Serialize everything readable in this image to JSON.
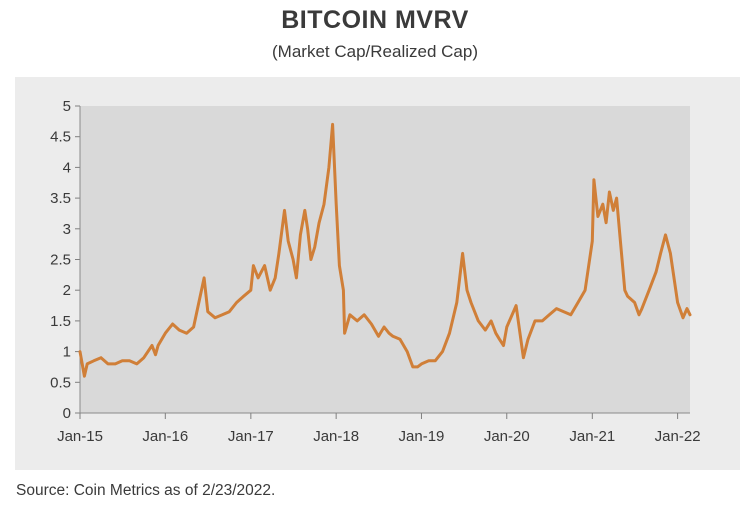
{
  "header": {
    "title": "BITCOIN MVRV",
    "subtitle": "(Market Cap/Realized Cap)"
  },
  "footer": {
    "source": "Source: Coin Metrics as of 2/23/2022."
  },
  "colors": {
    "line": "#d07f38",
    "plot_bg": "#d9d9d9",
    "panel_bg": "#ececec",
    "text": "#3a3a3a"
  },
  "chart_data": {
    "type": "line",
    "title": "BITCOIN MVRV",
    "subtitle": "(Market Cap/Realized Cap)",
    "xlabel": "",
    "ylabel": "",
    "ylim": [
      0,
      5
    ],
    "yticks": [
      0,
      0.5,
      1,
      1.5,
      2,
      2.5,
      3,
      3.5,
      4,
      4.5,
      5
    ],
    "ytick_labels": [
      "0",
      "0.5",
      "1",
      "1.5",
      "2",
      "2.5",
      "3",
      "3.5",
      "4",
      "4.5",
      "5"
    ],
    "xlim": [
      "2015-01-01",
      "2022-02-23"
    ],
    "xticks": [
      "2015-01-01",
      "2016-01-01",
      "2017-01-01",
      "2018-01-01",
      "2019-01-01",
      "2020-01-01",
      "2021-01-01",
      "2022-01-01"
    ],
    "xtick_labels": [
      "Jan-15",
      "Jan-16",
      "Jan-17",
      "Jan-18",
      "Jan-19",
      "Jan-20",
      "Jan-21",
      "Jan-22"
    ],
    "grid": false,
    "legend": "none",
    "series": [
      {
        "x": [
          "2015-01-01",
          "2015-01-20",
          "2015-02-01",
          "2015-03-01",
          "2015-04-01",
          "2015-05-01",
          "2015-06-01",
          "2015-07-01",
          "2015-08-01",
          "2015-09-01",
          "2015-10-01",
          "2015-11-05",
          "2015-11-20",
          "2015-12-01",
          "2016-01-01",
          "2016-02-01",
          "2016-03-01",
          "2016-04-01",
          "2016-05-01",
          "2016-06-15",
          "2016-07-01",
          "2016-08-01",
          "2016-09-01",
          "2016-10-01",
          "2016-11-01",
          "2016-12-01",
          "2017-01-01",
          "2017-01-12",
          "2017-02-01",
          "2017-03-01",
          "2017-03-25",
          "2017-04-15",
          "2017-05-01",
          "2017-05-25",
          "2017-06-10",
          "2017-07-01",
          "2017-07-15",
          "2017-08-01",
          "2017-08-20",
          "2017-09-01",
          "2017-09-15",
          "2017-10-01",
          "2017-10-20",
          "2017-11-10",
          "2017-12-01",
          "2017-12-17",
          "2018-01-01",
          "2018-01-15",
          "2018-02-01",
          "2018-02-06",
          "2018-03-01",
          "2018-04-01",
          "2018-05-01",
          "2018-06-01",
          "2018-07-01",
          "2018-07-25",
          "2018-08-15",
          "2018-09-01",
          "2018-10-01",
          "2018-11-01",
          "2018-11-25",
          "2018-12-15",
          "2019-01-01",
          "2019-02-01",
          "2019-03-01",
          "2019-04-01",
          "2019-05-01",
          "2019-06-01",
          "2019-06-26",
          "2019-07-15",
          "2019-08-01",
          "2019-09-01",
          "2019-10-01",
          "2019-10-26",
          "2019-11-15",
          "2019-12-01",
          "2019-12-18",
          "2020-01-01",
          "2020-02-10",
          "2020-03-12",
          "2020-04-01",
          "2020-05-01",
          "2020-06-01",
          "2020-07-01",
          "2020-08-01",
          "2020-09-01",
          "2020-10-01",
          "2020-11-01",
          "2020-12-01",
          "2021-01-01",
          "2021-01-08",
          "2021-01-25",
          "2021-02-15",
          "2021-03-01",
          "2021-03-15",
          "2021-04-01",
          "2021-04-15",
          "2021-05-01",
          "2021-05-20",
          "2021-06-01",
          "2021-07-01",
          "2021-07-20",
          "2021-08-01",
          "2021-09-01",
          "2021-10-01",
          "2021-10-20",
          "2021-11-10",
          "2021-12-01",
          "2022-01-01",
          "2022-01-24",
          "2022-02-10",
          "2022-02-23"
        ],
        "values": [
          1.0,
          0.6,
          0.8,
          0.85,
          0.9,
          0.8,
          0.8,
          0.85,
          0.85,
          0.8,
          0.9,
          1.1,
          0.95,
          1.1,
          1.3,
          1.45,
          1.35,
          1.3,
          1.4,
          2.2,
          1.65,
          1.55,
          1.6,
          1.65,
          1.8,
          1.9,
          2.0,
          2.4,
          2.2,
          2.4,
          2.0,
          2.2,
          2.6,
          3.3,
          2.8,
          2.5,
          2.2,
          2.9,
          3.3,
          3.0,
          2.5,
          2.7,
          3.1,
          3.4,
          4.0,
          4.7,
          3.4,
          2.4,
          2.0,
          1.3,
          1.6,
          1.5,
          1.6,
          1.45,
          1.25,
          1.4,
          1.3,
          1.25,
          1.2,
          1.0,
          0.75,
          0.75,
          0.8,
          0.85,
          0.85,
          1.0,
          1.3,
          1.8,
          2.6,
          2.0,
          1.8,
          1.5,
          1.35,
          1.5,
          1.3,
          1.2,
          1.1,
          1.4,
          1.75,
          0.9,
          1.2,
          1.5,
          1.5,
          1.6,
          1.7,
          1.65,
          1.6,
          1.8,
          2.0,
          2.8,
          3.8,
          3.2,
          3.4,
          3.1,
          3.6,
          3.3,
          3.5,
          2.8,
          2.0,
          1.9,
          1.8,
          1.6,
          1.7,
          2.0,
          2.3,
          2.6,
          2.9,
          2.6,
          1.8,
          1.55,
          1.7,
          1.6
        ]
      }
    ]
  }
}
